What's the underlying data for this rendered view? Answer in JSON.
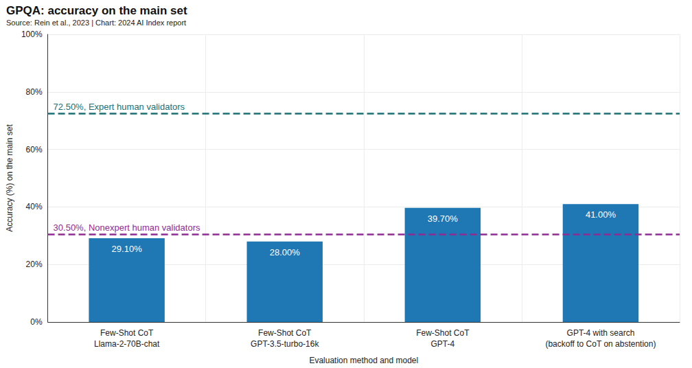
{
  "chart_data": {
    "type": "bar",
    "title": "GPQA: accuracy on the main set",
    "subtitle": "Source: Rein et al., 2023 | Chart: 2024 AI Index report",
    "x_label": "Evaluation method and model",
    "y_label": "Accuracy (%) on the main set",
    "categories": [
      "Few-Shot CoT\nLlama-2-70B-chat",
      "Few-Shot CoT\nGPT-3.5-turbo-16k",
      "Few-Shot CoT\nGPT-4",
      "GPT-4 with search\n(backoff to CoT on abstention)"
    ],
    "values": [
      29.1,
      28.0,
      39.7,
      41.0
    ],
    "value_labels": [
      "29.10%",
      "28.00%",
      "39.70%",
      "41.00%"
    ],
    "color": "#1f77b4",
    "data_labels": true,
    "ylim": [
      0,
      100
    ],
    "yticks": [
      {
        "value": 0,
        "label": "0%"
      },
      {
        "value": 20,
        "label": "20%"
      },
      {
        "value": 40,
        "label": "40%"
      },
      {
        "value": 60,
        "label": "60%"
      },
      {
        "value": 80,
        "label": "80%"
      },
      {
        "value": 100,
        "label": "100%"
      }
    ],
    "grid": true,
    "annotations": [
      {
        "text": "72.50%, Expert human validators",
        "value": 72.5,
        "color": "#1b6f73",
        "line_style": "dashed"
      },
      {
        "text": "30.50%, Nonexpert human validators",
        "value": 30.5,
        "color": "#8e2c91",
        "line_style": "dashed"
      }
    ]
  }
}
